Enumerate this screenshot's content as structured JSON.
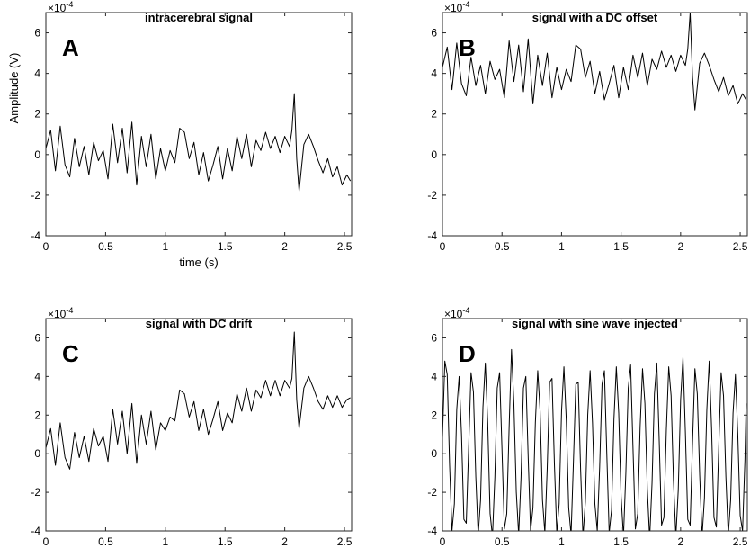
{
  "chart_data": [
    {
      "type": "line",
      "letter": "A",
      "title": "intracerebral signal",
      "xlabel": "time (s)",
      "ylabel": "Amplitude (V)",
      "xlim": [
        0,
        2.56
      ],
      "ylim": [
        -4,
        7
      ],
      "xticks": [
        0,
        0.5,
        1,
        1.5,
        2,
        2.5
      ],
      "xtick_labels": [
        "0",
        "0.5",
        "1",
        "1.5",
        "2",
        "2.5"
      ],
      "yticks": [
        -4,
        -2,
        0,
        2,
        4,
        6
      ],
      "ytick_labels": [
        "-4",
        "-2",
        "0",
        "2",
        "4",
        "6"
      ],
      "y_scale_base": "×10",
      "y_scale_exponent": "-4",
      "grid": false,
      "series": [
        {
          "x": [
            0.0,
            0.04,
            0.08,
            0.12,
            0.16,
            0.2,
            0.24,
            0.28,
            0.32,
            0.36,
            0.4,
            0.44,
            0.48,
            0.52,
            0.56,
            0.6,
            0.64,
            0.68,
            0.72,
            0.76,
            0.8,
            0.84,
            0.88,
            0.92,
            0.96,
            1.0,
            1.04,
            1.08,
            1.12,
            1.16,
            1.2,
            1.24,
            1.28,
            1.32,
            1.36,
            1.4,
            1.44,
            1.48,
            1.52,
            1.56,
            1.6,
            1.64,
            1.68,
            1.72,
            1.76,
            1.8,
            1.84,
            1.88,
            1.92,
            1.96,
            2.0,
            2.04,
            2.06,
            2.08,
            2.1,
            2.12,
            2.16,
            2.2,
            2.24,
            2.28,
            2.32,
            2.36,
            2.4,
            2.44,
            2.48,
            2.52,
            2.55
          ],
          "y": [
            0.3,
            1.2,
            -0.8,
            1.4,
            -0.5,
            -1.1,
            0.8,
            -0.6,
            0.4,
            -1.0,
            0.6,
            -0.3,
            0.2,
            -1.2,
            1.5,
            -0.4,
            1.3,
            -0.9,
            1.6,
            -1.5,
            0.9,
            -0.6,
            1.0,
            -1.2,
            0.3,
            -0.8,
            0.2,
            -0.4,
            1.3,
            1.1,
            -0.2,
            0.6,
            -1.0,
            0.1,
            -1.3,
            -0.5,
            0.4,
            -1.2,
            0.3,
            -0.8,
            0.9,
            -0.2,
            1.0,
            -0.6,
            0.7,
            0.2,
            1.1,
            0.3,
            0.9,
            0.1,
            0.9,
            0.4,
            1.2,
            3.0,
            -0.2,
            -1.8,
            0.5,
            1.0,
            0.4,
            -0.3,
            -0.9,
            -0.2,
            -1.1,
            -0.6,
            -1.5,
            -1.0,
            -1.3
          ]
        }
      ]
    },
    {
      "type": "line",
      "letter": "B",
      "title": "signal with a DC offset",
      "xlabel": "",
      "ylabel": "",
      "xlim": [
        0,
        2.56
      ],
      "ylim": [
        -4,
        7
      ],
      "xticks": [
        0,
        0.5,
        1,
        1.5,
        2,
        2.5
      ],
      "xtick_labels": [
        "0",
        "0.5",
        "1",
        "1.5",
        "2",
        "2.5"
      ],
      "yticks": [
        -4,
        -2,
        0,
        2,
        4,
        6
      ],
      "ytick_labels": [
        "-4",
        "-2",
        "0",
        "2",
        "4",
        "6"
      ],
      "y_scale_base": "×10",
      "y_scale_exponent": "-4",
      "grid": false,
      "series": [
        {
          "x": [
            0.0,
            0.04,
            0.08,
            0.12,
            0.16,
            0.2,
            0.24,
            0.28,
            0.32,
            0.36,
            0.4,
            0.44,
            0.48,
            0.52,
            0.56,
            0.6,
            0.64,
            0.68,
            0.72,
            0.76,
            0.8,
            0.84,
            0.88,
            0.92,
            0.96,
            1.0,
            1.04,
            1.08,
            1.12,
            1.16,
            1.2,
            1.24,
            1.28,
            1.32,
            1.36,
            1.4,
            1.44,
            1.48,
            1.52,
            1.56,
            1.6,
            1.64,
            1.68,
            1.72,
            1.76,
            1.8,
            1.84,
            1.88,
            1.92,
            1.96,
            2.0,
            2.04,
            2.06,
            2.08,
            2.1,
            2.12,
            2.16,
            2.2,
            2.24,
            2.28,
            2.32,
            2.36,
            2.4,
            2.44,
            2.48,
            2.52,
            2.55
          ],
          "y": [
            4.3,
            5.3,
            3.2,
            5.5,
            3.5,
            2.9,
            4.8,
            3.4,
            4.4,
            3.0,
            4.6,
            3.7,
            4.2,
            2.8,
            5.6,
            3.6,
            5.4,
            3.1,
            5.7,
            2.5,
            4.9,
            3.4,
            5.0,
            2.8,
            4.3,
            3.2,
            4.2,
            3.6,
            5.4,
            5.2,
            3.8,
            4.6,
            3.0,
            4.1,
            2.7,
            3.5,
            4.4,
            2.8,
            4.3,
            3.2,
            4.9,
            3.8,
            5.0,
            3.4,
            4.7,
            4.2,
            5.1,
            4.3,
            4.9,
            4.1,
            4.9,
            4.4,
            5.2,
            7.0,
            3.8,
            2.2,
            4.5,
            5.0,
            4.4,
            3.7,
            3.1,
            3.8,
            2.9,
            3.4,
            2.5,
            3.0,
            2.7
          ]
        }
      ]
    },
    {
      "type": "line",
      "letter": "C",
      "title": "signal with DC drift",
      "xlabel": "",
      "ylabel": "",
      "xlim": [
        0,
        2.56
      ],
      "ylim": [
        -4,
        7
      ],
      "xticks": [
        0,
        0.5,
        1,
        1.5,
        2,
        2.5
      ],
      "xtick_labels": [
        "0",
        "0.5",
        "1",
        "1.5",
        "2",
        "2.5"
      ],
      "yticks": [
        -4,
        -2,
        0,
        2,
        4,
        6
      ],
      "ytick_labels": [
        "-4",
        "-2",
        "0",
        "2",
        "4",
        "6"
      ],
      "y_scale_base": "×10",
      "y_scale_exponent": "-4",
      "grid": false,
      "series": [
        {
          "x": [
            0.0,
            0.04,
            0.08,
            0.12,
            0.16,
            0.2,
            0.24,
            0.28,
            0.32,
            0.36,
            0.4,
            0.44,
            0.48,
            0.52,
            0.56,
            0.6,
            0.64,
            0.68,
            0.72,
            0.76,
            0.8,
            0.84,
            0.88,
            0.92,
            0.96,
            1.0,
            1.04,
            1.08,
            1.12,
            1.16,
            1.2,
            1.24,
            1.28,
            1.32,
            1.36,
            1.4,
            1.44,
            1.48,
            1.52,
            1.56,
            1.6,
            1.64,
            1.68,
            1.72,
            1.76,
            1.8,
            1.84,
            1.88,
            1.92,
            1.96,
            2.0,
            2.04,
            2.06,
            2.08,
            2.1,
            2.12,
            2.16,
            2.2,
            2.24,
            2.28,
            2.32,
            2.36,
            2.4,
            2.44,
            2.48,
            2.52,
            2.55
          ],
          "y": [
            0.3,
            1.3,
            -0.6,
            1.6,
            -0.2,
            -0.8,
            1.1,
            -0.2,
            0.9,
            -0.4,
            1.3,
            0.4,
            0.9,
            -0.4,
            2.3,
            0.5,
            2.2,
            0.0,
            2.6,
            -0.5,
            2.0,
            0.5,
            2.2,
            0.2,
            1.6,
            1.2,
            1.9,
            1.7,
            3.3,
            3.1,
            1.9,
            2.7,
            1.2,
            2.3,
            1.0,
            1.8,
            2.7,
            1.2,
            2.1,
            1.6,
            3.1,
            2.2,
            3.4,
            2.2,
            3.3,
            2.9,
            3.8,
            3.0,
            3.8,
            3.0,
            3.8,
            3.4,
            3.9,
            6.3,
            2.8,
            1.3,
            3.4,
            4.0,
            3.4,
            2.7,
            2.3,
            3.0,
            2.4,
            3.0,
            2.4,
            2.8,
            2.9
          ]
        }
      ]
    },
    {
      "type": "line",
      "letter": "D",
      "title": "signal with sine wave injected",
      "xlabel": "",
      "ylabel": "",
      "xlim": [
        0,
        2.56
      ],
      "ylim": [
        -4,
        7
      ],
      "xticks": [
        0,
        0.5,
        1,
        1.5,
        2,
        2.5
      ],
      "xtick_labels": [
        "0",
        "0.5",
        "1",
        "1.5",
        "2",
        "2.5"
      ],
      "yticks": [
        -4,
        -2,
        0,
        2,
        4,
        6
      ],
      "ytick_labels": [
        "-4",
        "-2",
        "0",
        "2",
        "4",
        "6"
      ],
      "y_scale_base": "×10",
      "y_scale_exponent": "-4",
      "grid": false,
      "series": [
        {
          "x": [
            0.0,
            0.02,
            0.04,
            0.06,
            0.08,
            0.1,
            0.12,
            0.14,
            0.16,
            0.18,
            0.2,
            0.22,
            0.24,
            0.26,
            0.28,
            0.3,
            0.32,
            0.34,
            0.36,
            0.38,
            0.4,
            0.42,
            0.44,
            0.46,
            0.48,
            0.5,
            0.52,
            0.54,
            0.56,
            0.58,
            0.6,
            0.62,
            0.64,
            0.66,
            0.68,
            0.7,
            0.72,
            0.74,
            0.76,
            0.78,
            0.8,
            0.82,
            0.84,
            0.86,
            0.88,
            0.9,
            0.92,
            0.94,
            0.96,
            0.98,
            1.0,
            1.02,
            1.04,
            1.06,
            1.08,
            1.1,
            1.12,
            1.14,
            1.16,
            1.18,
            1.2,
            1.22,
            1.24,
            1.26,
            1.28,
            1.3,
            1.32,
            1.34,
            1.36,
            1.38,
            1.4,
            1.42,
            1.44,
            1.46,
            1.48,
            1.5,
            1.52,
            1.54,
            1.56,
            1.58,
            1.6,
            1.62,
            1.64,
            1.66,
            1.68,
            1.7,
            1.72,
            1.74,
            1.76,
            1.78,
            1.8,
            1.82,
            1.84,
            1.86,
            1.88,
            1.9,
            1.92,
            1.94,
            1.96,
            1.98,
            2.0,
            2.02,
            2.04,
            2.06,
            2.08,
            2.1,
            2.12,
            2.14,
            2.16,
            2.18,
            2.2,
            2.22,
            2.24,
            2.26,
            2.28,
            2.3,
            2.32,
            2.34,
            2.36,
            2.38,
            2.4,
            2.42,
            2.44,
            2.46,
            2.48,
            2.5,
            2.52,
            2.54,
            2.55
          ],
          "y": [
            0.8,
            4.8,
            4.1,
            -0.6,
            -4.0,
            -2.6,
            2.3,
            4.0,
            1.0,
            -3.4,
            -3.6,
            0.3,
            4.2,
            3.2,
            -1.2,
            -4.2,
            -2.4,
            2.4,
            4.7,
            1.6,
            -3.1,
            -4.3,
            -1.2,
            3.4,
            4.2,
            0.2,
            -3.9,
            -3.1,
            1.4,
            5.4,
            2.6,
            -2.0,
            -4.2,
            -1.2,
            3.4,
            4.0,
            -0.2,
            -4.0,
            -2.8,
            1.6,
            4.3,
            2.2,
            -2.4,
            -4.1,
            -0.7,
            3.7,
            3.9,
            -0.5,
            -4.1,
            -2.6,
            2.2,
            4.5,
            1.7,
            -2.8,
            -4.2,
            -0.4,
            3.6,
            3.7,
            -0.8,
            -4.3,
            -2.5,
            2.0,
            4.3,
            1.6,
            -2.6,
            -4.0,
            -0.7,
            3.6,
            4.3,
            0.0,
            -4.1,
            -2.9,
            1.8,
            4.5,
            2.1,
            -2.2,
            -4.3,
            -1.0,
            3.4,
            4.6,
            0.3,
            -3.9,
            -3.1,
            1.4,
            4.4,
            2.6,
            -1.8,
            -4.4,
            -1.5,
            3.1,
            4.7,
            0.7,
            -3.7,
            -3.3,
            1.2,
            4.5,
            3.0,
            -1.4,
            -4.3,
            -1.9,
            2.8,
            5.0,
            1.1,
            -3.4,
            -3.7,
            0.6,
            4.4,
            3.1,
            -1.1,
            -4.3,
            -2.3,
            2.3,
            4.8,
            1.3,
            -3.3,
            -3.8,
            0.3,
            4.2,
            3.0,
            -1.2,
            -4.2,
            -2.4,
            2.1,
            4.1,
            1.0,
            -3.2,
            -4.0,
            -0.3,
            2.6
          ]
        }
      ]
    }
  ]
}
